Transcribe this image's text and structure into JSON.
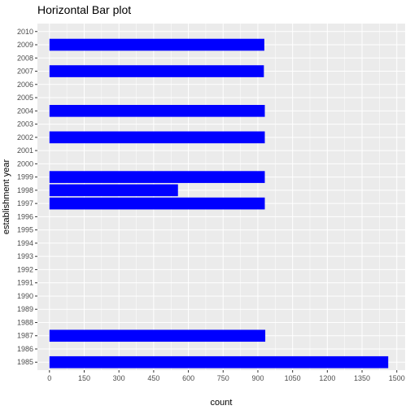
{
  "chart_data": {
    "type": "bar",
    "orientation": "horizontal",
    "title": "Horizontal Bar plot",
    "xlabel": "count",
    "ylabel": "establishment year",
    "categories": [
      "1985",
      "1986",
      "1987",
      "1988",
      "1989",
      "1990",
      "1991",
      "1992",
      "1993",
      "1994",
      "1995",
      "1996",
      "1997",
      "1998",
      "1999",
      "2000",
      "2001",
      "2002",
      "2003",
      "2004",
      "2005",
      "2006",
      "2007",
      "2008",
      "2009",
      "2010"
    ],
    "values": [
      1463,
      0,
      932,
      0,
      0,
      0,
      0,
      0,
      0,
      0,
      0,
      0,
      930,
      555,
      930,
      0,
      0,
      930,
      0,
      930,
      0,
      0,
      926,
      0,
      928,
      0
    ],
    "xticks": [
      0,
      150,
      300,
      450,
      600,
      750,
      900,
      1050,
      1200,
      1350,
      1500
    ],
    "xlim": [
      -52,
      1536
    ],
    "grid": true,
    "colors": {
      "bar": "#0000ff",
      "panel": "#ebebeb",
      "grid": "#ffffff"
    }
  }
}
